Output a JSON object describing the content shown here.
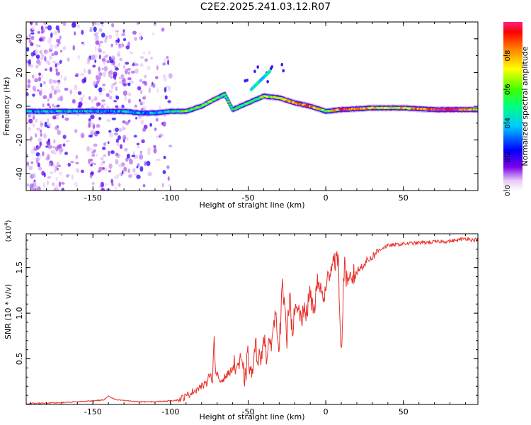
{
  "title": "C2E2.2025.241.03.12.R07",
  "chart_data": [
    {
      "type": "heatmap",
      "title": "C2E2.2025.241.03.12.R07",
      "xlabel": "Height of straight line (km)",
      "ylabel": "Frequency (Hz)",
      "xlim": [
        -193,
        98
      ],
      "ylim": [
        -50,
        50
      ],
      "xticks": [
        -150,
        -100,
        -50,
        0,
        50
      ],
      "yticks": [
        -40,
        -20,
        0,
        20,
        40
      ],
      "colorbar": {
        "label": "Normalized spectral amplitude",
        "range": [
          0,
          1
        ],
        "ticks": [
          0.0,
          0.2,
          0.4,
          0.6,
          0.8
        ]
      },
      "ridge": [
        {
          "x": -193,
          "freq": -3,
          "amp": 0.35
        },
        {
          "x": -175,
          "freq": -3,
          "amp": 0.4
        },
        {
          "x": -160,
          "freq": -3,
          "amp": 0.4
        },
        {
          "x": -145,
          "freq": -3,
          "amp": 0.35
        },
        {
          "x": -130,
          "freq": -3,
          "amp": 0.35
        },
        {
          "x": -120,
          "freq": -4,
          "amp": 0.3
        },
        {
          "x": -110,
          "freq": -4,
          "amp": 0.35
        },
        {
          "x": -100,
          "freq": -3,
          "amp": 0.45
        },
        {
          "x": -90,
          "freq": -3,
          "amp": 0.55
        },
        {
          "x": -80,
          "freq": 0,
          "amp": 0.6
        },
        {
          "x": -72,
          "freq": 4,
          "amp": 0.6
        },
        {
          "x": -65,
          "freq": 7,
          "amp": 0.55
        },
        {
          "x": -60,
          "freq": -2,
          "amp": 0.5
        },
        {
          "x": -50,
          "freq": 2,
          "amp": 0.55
        },
        {
          "x": -40,
          "freq": 6,
          "amp": 0.6
        },
        {
          "x": -30,
          "freq": 5,
          "amp": 0.7
        },
        {
          "x": -20,
          "freq": 2,
          "amp": 0.85
        },
        {
          "x": -10,
          "freq": 0,
          "amp": 0.85
        },
        {
          "x": 0,
          "freq": -3,
          "amp": 0.6
        },
        {
          "x": 10,
          "freq": -2,
          "amp": 0.9
        },
        {
          "x": 30,
          "freq": -1,
          "amp": 0.75
        },
        {
          "x": 50,
          "freq": -1,
          "amp": 0.75
        },
        {
          "x": 70,
          "freq": -2,
          "amp": 0.9
        },
        {
          "x": 85,
          "freq": -2,
          "amp": 0.95
        },
        {
          "x": 98,
          "freq": -2,
          "amp": 0.7
        }
      ]
    },
    {
      "type": "line",
      "xlabel": "Height of straight line (km)",
      "ylabel": "SNR (10 * v/v)",
      "y_multiplier": "(x10",
      "y_multiplier_exp": "4",
      "y_multiplier_close": ")",
      "xlim": [
        -193,
        98
      ],
      "ylim": [
        0,
        1.87
      ],
      "xticks": [
        -150,
        -100,
        -50,
        0,
        50
      ],
      "yticks": [
        0.5,
        1.0,
        1.5
      ],
      "color": "#e8302a",
      "series": [
        {
          "name": "SNR",
          "x": [
            -193,
            -170,
            -150,
            -143,
            -140,
            -135,
            -120,
            -110,
            -100,
            -95,
            -90,
            -85,
            -80,
            -77,
            -75,
            -73,
            -72,
            -71,
            -70,
            -68,
            -65,
            -62,
            -60,
            -55,
            -52,
            -50,
            -48,
            -45,
            -42,
            -40,
            -38,
            -35,
            -32,
            -30,
            -28,
            -25,
            -23,
            -22,
            -20,
            -18,
            -15,
            -12,
            -10,
            -8,
            -5,
            -2,
            0,
            2,
            5,
            8,
            10,
            12,
            14,
            16,
            20,
            25,
            30,
            35,
            40,
            50,
            60,
            70,
            80,
            85,
            90,
            95,
            98
          ],
          "y": [
            0.01,
            0.02,
            0.04,
            0.05,
            0.09,
            0.05,
            0.03,
            0.03,
            0.04,
            0.05,
            0.09,
            0.15,
            0.2,
            0.22,
            0.35,
            0.25,
            0.77,
            0.3,
            0.33,
            0.25,
            0.3,
            0.35,
            0.4,
            0.45,
            0.28,
            0.55,
            0.3,
            0.62,
            0.45,
            0.8,
            0.5,
            0.72,
            1.0,
            0.62,
            1.3,
            0.7,
            1.35,
            0.8,
            0.98,
            1.02,
            0.95,
            1.05,
            1.2,
            1.02,
            1.35,
            1.18,
            1.22,
            1.45,
            1.6,
            1.58,
            0.52,
            1.6,
            1.25,
            1.38,
            1.45,
            1.55,
            1.62,
            1.7,
            1.74,
            1.76,
            1.77,
            1.78,
            1.79,
            1.8,
            1.82,
            1.8,
            1.81
          ]
        }
      ]
    }
  ]
}
